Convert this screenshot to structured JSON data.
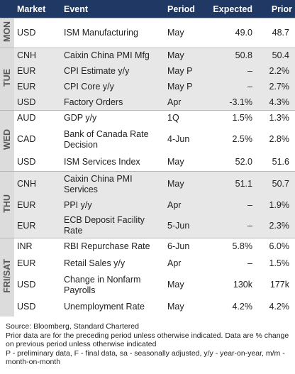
{
  "table": {
    "columns": [
      "Market",
      "Event",
      "Period",
      "Expected",
      "Prior"
    ],
    "groups": [
      {
        "day": "MON",
        "rows": [
          [
            "USD",
            "ISM Manufacturing",
            "May",
            "49.0",
            "48.7"
          ]
        ]
      },
      {
        "day": "TUE",
        "rows": [
          [
            "CNH",
            "Caixin China PMI Mfg",
            "May",
            "50.8",
            "50.4"
          ],
          [
            "EUR",
            "CPI Estimate y/y",
            "May P",
            "–",
            "2.2%"
          ],
          [
            "EUR",
            "CPI Core y/y",
            "May P",
            "–",
            "2.7%"
          ],
          [
            "USD",
            "Factory Orders",
            "Apr",
            "-3.1%",
            "4.3%"
          ]
        ]
      },
      {
        "day": "WED",
        "rows": [
          [
            "AUD",
            "GDP y/y",
            "1Q",
            "1.5%",
            "1.3%"
          ],
          [
            "CAD",
            "Bank of Canada Rate Decision",
            "4-Jun",
            "2.5%",
            "2.8%"
          ],
          [
            "USD",
            "ISM Services Index",
            "May",
            "52.0",
            "51.6"
          ]
        ]
      },
      {
        "day": "THU",
        "rows": [
          [
            "CNH",
            "Caixin China PMI Services",
            "May",
            "51.1",
            "50.7"
          ],
          [
            "EUR",
            "PPI y/y",
            "Apr",
            "–",
            "1.9%"
          ],
          [
            "EUR",
            "ECB Deposit Facility Rate",
            "5-Jun",
            "–",
            "2.3%"
          ]
        ]
      },
      {
        "day": "FRI/SAT",
        "rows": [
          [
            "INR",
            "RBI Repurchase Rate",
            "6-Jun",
            "5.8%",
            "6.0%"
          ],
          [
            "EUR",
            "Retail Sales y/y",
            "Apr",
            "–",
            "1.5%"
          ],
          [
            "USD",
            "Change in Nonfarm Payrolls",
            "May",
            "130k",
            "177k"
          ],
          [
            "USD",
            "Unemployment Rate",
            "May",
            "4.2%",
            "4.2%"
          ]
        ]
      }
    ]
  },
  "footer": [
    "Source: Bloomberg, Standard Chartered",
    "Prior data are for the preceding period unless otherwise indicated. Data are % change on previous period unless otherwise indicated",
    "P - preliminary data, F - final data, sa - seasonally adjusted, y/y - year-on-year, m/m - month-on-month"
  ]
}
